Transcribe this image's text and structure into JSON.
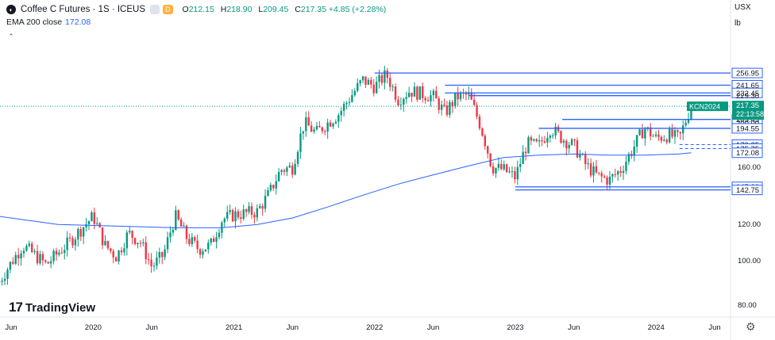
{
  "header": {
    "title": "Coffee C Futures · 1S · ICEUS",
    "ohlc": [
      {
        "k": "O",
        "v": "212.15"
      },
      {
        "k": "H",
        "v": "218.90"
      },
      {
        "k": "L",
        "v": "209.45"
      },
      {
        "k": "C",
        "v": "217.35 +4.85 (+2.28%)"
      }
    ],
    "d_badge": "D",
    "ema_label": "EMA 200 close",
    "ema_value": "172.08",
    "currency": "USX",
    "unit": "lb"
  },
  "brand": {
    "text": "TradingView",
    "mark": "17"
  },
  "colors": {
    "up": "#089981",
    "down": "#f23645",
    "ema": "#2962ff",
    "hline": "#2962ff",
    "price": "#089981"
  },
  "chart_data": {
    "type": "candlestick",
    "ylim": [
      75,
      264
    ],
    "y_ticks": [
      80,
      100,
      120,
      160
    ],
    "x_ticks": [
      {
        "label": "Jun",
        "date": "2019-06"
      },
      {
        "label": "2020",
        "date": "2020-01"
      },
      {
        "label": "Jun",
        "date": "2020-06"
      },
      {
        "label": "2021",
        "date": "2021-01"
      },
      {
        "label": "Jun",
        "date": "2021-06"
      },
      {
        "label": "2022",
        "date": "2022-01"
      },
      {
        "label": "Jun",
        "date": "2022-06"
      },
      {
        "label": "2023",
        "date": "2023-01"
      },
      {
        "label": "Jun",
        "date": "2023-06"
      },
      {
        "label": "2024",
        "date": "2024-01"
      },
      {
        "label": "Jun",
        "date": "2024-06"
      }
    ],
    "price_path": [
      [
        "2019-05",
        90
      ],
      [
        "2019-07",
        108
      ],
      [
        "2019-09",
        98
      ],
      [
        "2019-11",
        110
      ],
      [
        "2020-01",
        125
      ],
      [
        "2020-02",
        108
      ],
      [
        "2020-03",
        102
      ],
      [
        "2020-04",
        115
      ],
      [
        "2020-05",
        110
      ],
      [
        "2020-06",
        97
      ],
      [
        "2020-07",
        103
      ],
      [
        "2020-08",
        125
      ],
      [
        "2020-09",
        112
      ],
      [
        "2020-10",
        106
      ],
      [
        "2020-11",
        108
      ],
      [
        "2020-12",
        123
      ],
      [
        "2021-01",
        126
      ],
      [
        "2021-03",
        128
      ],
      [
        "2021-04",
        140
      ],
      [
        "2021-05",
        158
      ],
      [
        "2021-06",
        160
      ],
      [
        "2021-07",
        200
      ],
      [
        "2021-08",
        190
      ],
      [
        "2021-10",
        210
      ],
      [
        "2021-12",
        248
      ],
      [
        "2022-01",
        240
      ],
      [
        "2022-02",
        255
      ],
      [
        "2022-03",
        225
      ],
      [
        "2022-04",
        235
      ],
      [
        "2022-06",
        228
      ],
      [
        "2022-07",
        210
      ],
      [
        "2022-08",
        228
      ],
      [
        "2022-09",
        230
      ],
      [
        "2022-10",
        198
      ],
      [
        "2022-11",
        160
      ],
      [
        "2022-12",
        158
      ],
      [
        "2023-01",
        152
      ],
      [
        "2023-02",
        180
      ],
      [
        "2023-03",
        178
      ],
      [
        "2023-04",
        195
      ],
      [
        "2023-05",
        185
      ],
      [
        "2023-06",
        178
      ],
      [
        "2023-07",
        162
      ],
      [
        "2023-08",
        153
      ],
      [
        "2023-09",
        150
      ],
      [
        "2023-10",
        158
      ],
      [
        "2023-11",
        175
      ],
      [
        "2023-12",
        195
      ],
      [
        "2024-01",
        185
      ],
      [
        "2024-02",
        188
      ],
      [
        "2024-03",
        185
      ],
      [
        "2024-04",
        217.35
      ]
    ],
    "ema_200": {
      "name": "EMA 200 close",
      "points": [
        [
          "2019-05",
          125
        ],
        [
          "2019-10",
          120
        ],
        [
          "2020-03",
          119
        ],
        [
          "2020-08",
          118
        ],
        [
          "2020-12",
          118
        ],
        [
          "2021-03",
          120
        ],
        [
          "2021-06",
          124
        ],
        [
          "2021-09",
          131
        ],
        [
          "2021-12",
          139
        ],
        [
          "2022-03",
          147
        ],
        [
          "2022-06",
          154
        ],
        [
          "2022-09",
          161
        ],
        [
          "2022-12",
          168
        ],
        [
          "2023-03",
          170
        ],
        [
          "2023-06",
          171
        ],
        [
          "2023-09",
          170
        ],
        [
          "2023-12",
          170
        ],
        [
          "2024-03",
          171
        ],
        [
          "2024-04",
          172.08
        ]
      ]
    },
    "horizontal_levels": [
      {
        "label": "256.95",
        "value": 256.95,
        "from": "2022-01",
        "style": "solid",
        "tag": "boxed"
      },
      {
        "label": "241.65",
        "value": 241.65,
        "from": "2022-07",
        "style": "solid",
        "tag": "boxed"
      },
      {
        "label": "232.45",
        "value": 232.45,
        "from": "2022-07",
        "style": "solid",
        "tag": "boxed"
      },
      {
        "label": "229.30",
        "value": 229.3,
        "from": "2022-09",
        "style": "solid",
        "tag": "plain"
      },
      {
        "label": "203.45",
        "value": 203.45,
        "from": "2023-05",
        "style": "solid",
        "tag": "boxed"
      },
      {
        "label": "200.00",
        "value": 200.0,
        "from": "2023-05",
        "style": "none",
        "tag": "plain"
      },
      {
        "label": "194.55",
        "value": 194.55,
        "from": "2023-03",
        "style": "solid",
        "tag": "boxed"
      },
      {
        "label": "179.25",
        "value": 179.25,
        "from": "2024-03",
        "style": "dashed",
        "tag": "boxed"
      },
      {
        "label": "175.75",
        "value": 175.75,
        "from": "2024-03",
        "style": "dashed",
        "tag": "boxed"
      },
      {
        "label": "172.08",
        "value": 172.08,
        "from": "2024-04",
        "style": "none",
        "tag": "boxed"
      },
      {
        "label": "145.00",
        "value": 145.0,
        "from": "2023-01",
        "style": "solid",
        "tag": "boxed"
      },
      {
        "label": "142.75",
        "value": 142.75,
        "from": "2023-01",
        "style": "solid",
        "tag": "boxed"
      }
    ],
    "last_price": {
      "symbol": "KCN2024",
      "value": 217.35,
      "label": "217.35",
      "countdown": "22:13:58"
    }
  }
}
